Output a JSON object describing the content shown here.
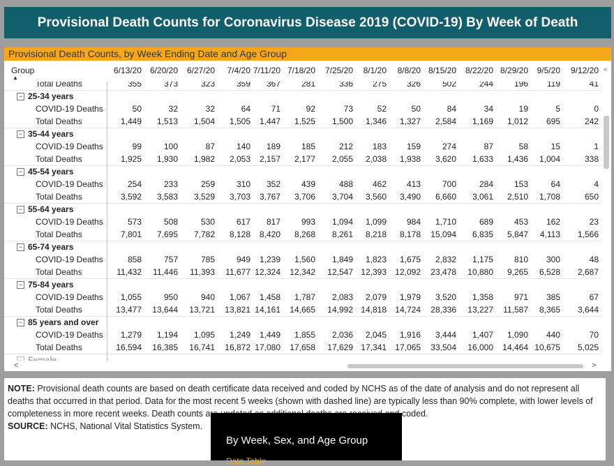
{
  "header": {
    "title": "Provisional Death Counts for Coronavirus Disease 2019 (COVID-19) By Week of Death"
  },
  "panel": {
    "title": "Provisional Death Counts, by Week Ending Date and Age Group",
    "group_header": "Group",
    "dates": [
      "6/13/20",
      "6/20/20",
      "6/27/20",
      "7/4/20",
      "7/11/20",
      "7/18/20",
      "7/25/20",
      "8/1/20",
      "8/8/20",
      "8/15/20",
      "8/22/20",
      "8/29/20",
      "9/5/20",
      "9/12/20"
    ]
  },
  "rows": [
    {
      "type": "total",
      "label": "Total Deaths",
      "values": [
        "355",
        "373",
        "323",
        "359",
        "367",
        "281",
        "336",
        "275",
        "326",
        "502",
        "244",
        "196",
        "119",
        "41"
      ]
    },
    {
      "type": "group",
      "label": "25-34 years"
    },
    {
      "type": "covid",
      "label": "COVID-19 Deaths",
      "values": [
        "50",
        "32",
        "32",
        "64",
        "71",
        "92",
        "73",
        "52",
        "50",
        "84",
        "34",
        "19",
        "5",
        "0"
      ]
    },
    {
      "type": "total",
      "label": "Total Deaths",
      "values": [
        "1,449",
        "1,513",
        "1,504",
        "1,505",
        "1,447",
        "1,525",
        "1,500",
        "1,346",
        "1,327",
        "2,584",
        "1,169",
        "1,012",
        "695",
        "242"
      ]
    },
    {
      "type": "group",
      "label": "35-44 years"
    },
    {
      "type": "covid",
      "label": "COVID-19 Deaths",
      "values": [
        "99",
        "100",
        "87",
        "140",
        "189",
        "185",
        "212",
        "183",
        "159",
        "274",
        "87",
        "58",
        "15",
        "1"
      ]
    },
    {
      "type": "total",
      "label": "Total Deaths",
      "values": [
        "1,925",
        "1,930",
        "1,982",
        "2,053",
        "2,157",
        "2,177",
        "2,055",
        "2,038",
        "1,938",
        "3,620",
        "1,633",
        "1,436",
        "1,004",
        "338"
      ]
    },
    {
      "type": "group",
      "label": "45-54 years"
    },
    {
      "type": "covid",
      "label": "COVID-19 Deaths",
      "values": [
        "254",
        "233",
        "259",
        "310",
        "352",
        "439",
        "488",
        "462",
        "413",
        "700",
        "284",
        "153",
        "64",
        "4"
      ]
    },
    {
      "type": "total",
      "label": "Total Deaths",
      "values": [
        "3,592",
        "3,583",
        "3,529",
        "3,703",
        "3,767",
        "3,706",
        "3,704",
        "3,560",
        "3,490",
        "6,660",
        "3,061",
        "2,510",
        "1,708",
        "650"
      ]
    },
    {
      "type": "group",
      "label": "55-64 years"
    },
    {
      "type": "covid",
      "label": "COVID-19 Deaths",
      "values": [
        "573",
        "508",
        "530",
        "617",
        "817",
        "993",
        "1,094",
        "1,099",
        "984",
        "1,710",
        "689",
        "453",
        "162",
        "23"
      ]
    },
    {
      "type": "total",
      "label": "Total Deaths",
      "values": [
        "7,801",
        "7,695",
        "7,782",
        "8,128",
        "8,420",
        "8,268",
        "8,261",
        "8,218",
        "8,178",
        "15,094",
        "6,835",
        "5,847",
        "4,113",
        "1,566"
      ]
    },
    {
      "type": "group",
      "label": "65-74 years"
    },
    {
      "type": "covid",
      "label": "COVID-19 Deaths",
      "values": [
        "858",
        "757",
        "785",
        "949",
        "1,239",
        "1,560",
        "1,849",
        "1,823",
        "1,675",
        "2,832",
        "1,175",
        "810",
        "300",
        "48"
      ]
    },
    {
      "type": "total",
      "label": "Total Deaths",
      "values": [
        "11,432",
        "11,446",
        "11,393",
        "11,677",
        "12,324",
        "12,342",
        "12,547",
        "12,393",
        "12,092",
        "23,478",
        "10,880",
        "9,265",
        "6,528",
        "2,687"
      ]
    },
    {
      "type": "group",
      "label": "75-84 years"
    },
    {
      "type": "covid",
      "label": "COVID-19 Deaths",
      "values": [
        "1,055",
        "950",
        "940",
        "1,067",
        "1,458",
        "1,787",
        "2,083",
        "2,079",
        "1,979",
        "3,520",
        "1,358",
        "971",
        "385",
        "67"
      ]
    },
    {
      "type": "total",
      "label": "Total Deaths",
      "values": [
        "13,477",
        "13,644",
        "13,721",
        "13,821",
        "14,161",
        "14,665",
        "14,992",
        "14,818",
        "14,724",
        "28,336",
        "13,227",
        "11,587",
        "8,365",
        "3,644"
      ]
    },
    {
      "type": "group",
      "label": "85 years and over"
    },
    {
      "type": "covid",
      "label": "COVID-19 Deaths",
      "values": [
        "1,279",
        "1,194",
        "1,095",
        "1,249",
        "1,449",
        "1,855",
        "2,036",
        "2,045",
        "1,916",
        "3,444",
        "1,407",
        "1,090",
        "440",
        "70"
      ]
    },
    {
      "type": "total",
      "label": "Total Deaths",
      "values": [
        "16,594",
        "16,385",
        "16,741",
        "16,872",
        "17,080",
        "17,658",
        "17,629",
        "17,341",
        "17,065",
        "33,504",
        "16,000",
        "14,464",
        "10,675",
        "5,025"
      ]
    },
    {
      "type": "sex",
      "label": "Female"
    }
  ],
  "note": {
    "note_label": "NOTE:",
    "note_text": "Provisional death counts are based on death certificate data received and coded by NCHS as of the date of analysis and do not represent all deaths that occurred in that period. Data for the most recent 5 weeks (shown with dashed line) are typically less than 90% complete, with lower levels of completeness in more recent weeks. Death counts are updated as additional deaths are received and coded.",
    "source_label": "SOURCE:",
    "source_text": "NCHS, National Vital Statistics System."
  },
  "tooltip": {
    "line1": "By Week, Sex, and Age Group",
    "line2": "Data Table"
  },
  "icons": {
    "expander": "minus-box-icon",
    "sort": "sort-up-icon",
    "scroll_up": "chevron-up-icon",
    "scroll_left": "chevron-left-icon",
    "scroll_right": "chevron-right-icon"
  }
}
